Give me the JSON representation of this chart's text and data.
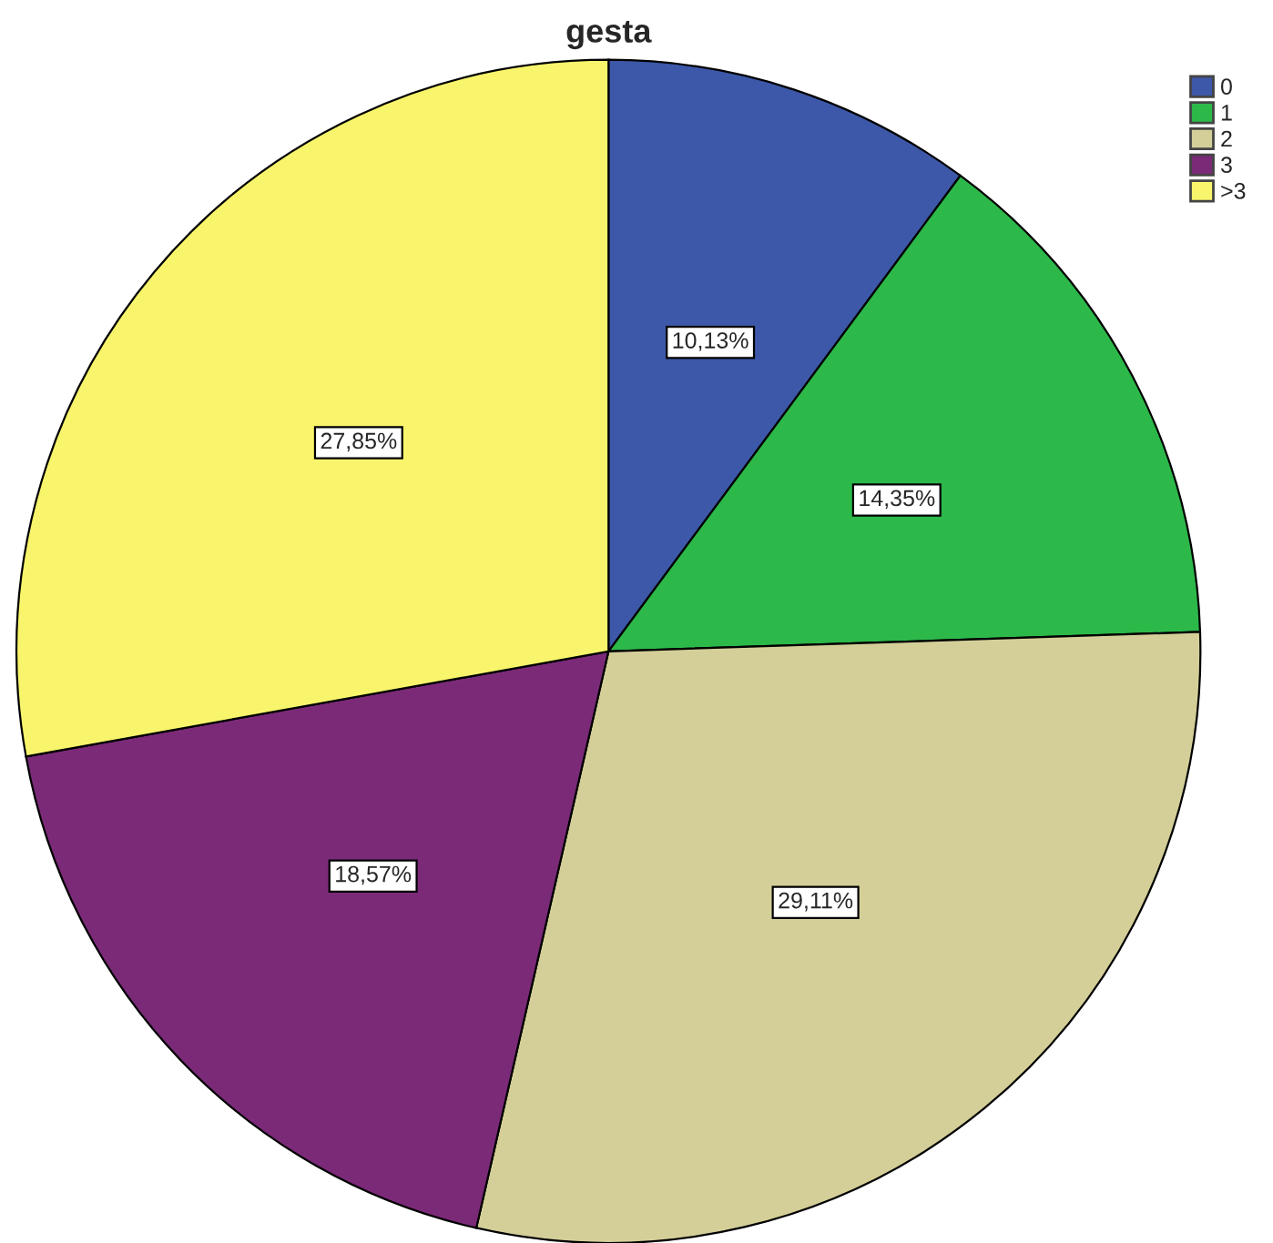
{
  "chart_data": {
    "type": "pie",
    "title": "gesta",
    "categories": [
      "0",
      "1",
      "2",
      "3",
      ">3"
    ],
    "values": [
      10.13,
      14.35,
      29.11,
      18.57,
      27.85
    ],
    "colors": [
      "#3d58a8",
      "#2db84a",
      "#d4cf98",
      "#7b2a78",
      "#f8f56c"
    ],
    "value_labels": [
      "10,13%",
      "14,35%",
      "29,11%",
      "18,57%",
      "27,85%"
    ],
    "legend": "top right"
  }
}
